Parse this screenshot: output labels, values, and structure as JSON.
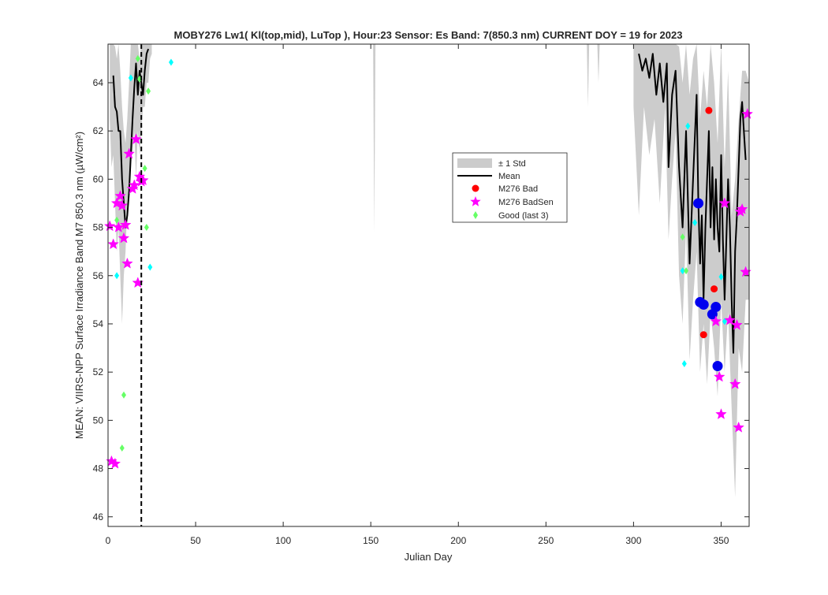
{
  "chart_data": {
    "type": "line",
    "title": "MOBY276   Lw1( Kl(top,mid), LuTop ),   Hour:23 Sensor: Es Band: 7(850.3 nm)   CURRENT DOY = 19 for 2023",
    "xlabel": "Julian Day",
    "ylabel": "MEAN: VIIRS-NPP Surface Irradiance Band M7 850.3 nm (µW/cm²)",
    "xlim": [
      0,
      366
    ],
    "ylim": [
      45.6,
      65.6
    ],
    "x_ticks": [
      0,
      50,
      100,
      150,
      200,
      250,
      300,
      350
    ],
    "y_ticks": [
      46,
      48,
      50,
      52,
      54,
      56,
      58,
      60,
      62,
      64
    ],
    "grid": false,
    "legend_position": "center-right",
    "current_doy": 19,
    "legend": [
      "± 1 Std",
      "Mean",
      "M276 Bad",
      "M276 BadSen",
      "Good (last 3)"
    ],
    "series": [
      {
        "name": "± 1 Std",
        "kind": "band",
        "color": "#cccccc",
        "points": [
          [
            1,
            62.5,
            66.5
          ],
          [
            2,
            60.5,
            66
          ],
          [
            3,
            61,
            66.5
          ],
          [
            4,
            59,
            65.5
          ],
          [
            5,
            57,
            65
          ],
          [
            6,
            58,
            66
          ],
          [
            7,
            56,
            64.5
          ],
          [
            8,
            54,
            63
          ],
          [
            9,
            56,
            62
          ],
          [
            10,
            57,
            61.5
          ],
          [
            11,
            59,
            62.5
          ],
          [
            12,
            60,
            64
          ],
          [
            13,
            61,
            66
          ],
          [
            14,
            61,
            66.5
          ],
          [
            15,
            62,
            66.5
          ],
          [
            16,
            60,
            66
          ],
          [
            17,
            62,
            66.5
          ],
          [
            18,
            61,
            65
          ],
          [
            19,
            62,
            66
          ],
          [
            20,
            63,
            66.5
          ],
          [
            21,
            63,
            66.5
          ],
          [
            22,
            64,
            66.5
          ],
          [
            23,
            64,
            66.5
          ],
          [
            24,
            65,
            66.5
          ],
          [
            25,
            65.2,
            66.5
          ]
        ],
        "spikes": [
          [
            152,
            57.8
          ],
          [
            274,
            63.0
          ],
          [
            280,
            64.0
          ]
        ]
      },
      {
        "name": "",
        "kind": "band",
        "color": "#cccccc",
        "points": [
          [
            300,
            63.0,
            66.5
          ],
          [
            303,
            58.5,
            66.5
          ],
          [
            306,
            63.0,
            66.5
          ],
          [
            309,
            61.0,
            66.5
          ],
          [
            312,
            62.5,
            66.5
          ],
          [
            315,
            59.0,
            66.5
          ],
          [
            318,
            63.0,
            66.5
          ],
          [
            320,
            57.5,
            66.5
          ],
          [
            322,
            60.0,
            66.5
          ],
          [
            324,
            62.0,
            66.5
          ],
          [
            326,
            56.0,
            65.5
          ],
          [
            328,
            54.0,
            64.0
          ],
          [
            330,
            58.0,
            66.5
          ],
          [
            332,
            52.5,
            63.5
          ],
          [
            334,
            55.0,
            65.0
          ],
          [
            336,
            57.0,
            66.0
          ],
          [
            338,
            52.0,
            62.5
          ],
          [
            340,
            54.0,
            64.5
          ],
          [
            342,
            51.5,
            63.0
          ],
          [
            344,
            54.5,
            66.0
          ],
          [
            346,
            53.0,
            64.0
          ],
          [
            348,
            51.0,
            61.5
          ],
          [
            350,
            55.0,
            66.0
          ],
          [
            352,
            52.0,
            60.5
          ],
          [
            354,
            54.5,
            64.5
          ],
          [
            356,
            50.5,
            58.5
          ],
          [
            358,
            46.8,
            60.0
          ],
          [
            360,
            53.0,
            62.5
          ],
          [
            362,
            52.0,
            64.5
          ],
          [
            364,
            55.0,
            64.5
          ],
          [
            366,
            55.0,
            64.0
          ]
        ]
      },
      {
        "name": "Mean",
        "kind": "line",
        "color": "#000000",
        "segments": [
          [
            [
              3,
              64.3
            ],
            [
              4,
              63
            ],
            [
              5,
              62.8
            ],
            [
              6,
              62
            ],
            [
              7,
              62
            ],
            [
              8,
              60
            ],
            [
              9,
              59
            ],
            [
              10,
              58
            ],
            [
              11,
              58.5
            ],
            [
              12,
              59.5
            ],
            [
              13,
              61
            ],
            [
              14,
              62.5
            ],
            [
              15,
              63.8
            ],
            [
              16,
              64.8
            ],
            [
              17,
              63.5
            ],
            [
              18,
              64.5
            ],
            [
              19,
              64
            ],
            [
              20,
              63.5
            ],
            [
              21,
              64.5
            ],
            [
              22,
              65.2
            ],
            [
              23,
              65.4
            ]
          ],
          [
            [
              303,
              65.2
            ],
            [
              305,
              64.5
            ],
            [
              307,
              65
            ],
            [
              309,
              64.2
            ],
            [
              311,
              65.2
            ],
            [
              313,
              63.5
            ],
            [
              315,
              64.8
            ],
            [
              317,
              63.2
            ],
            [
              319,
              64.8
            ],
            [
              320,
              60.5
            ],
            [
              322,
              63.5
            ],
            [
              324,
              64.5
            ],
            [
              326,
              60.5
            ],
            [
              328,
              58
            ],
            [
              330,
              62
            ],
            [
              332,
              56.5
            ],
            [
              334,
              60
            ],
            [
              336,
              63.5
            ],
            [
              337,
              59
            ],
            [
              338,
              56.5
            ],
            [
              339,
              58.5
            ],
            [
              340,
              55
            ],
            [
              341,
              58
            ],
            [
              342,
              60
            ],
            [
              343,
              62
            ],
            [
              344,
              58
            ],
            [
              345,
              60.5
            ],
            [
              346,
              57.5
            ],
            [
              347,
              60
            ],
            [
              348,
              58
            ],
            [
              349,
              57
            ],
            [
              350,
              61
            ],
            [
              351,
              57.5
            ],
            [
              352,
              55
            ],
            [
              353,
              57.5
            ],
            [
              354,
              60
            ],
            [
              355,
              58
            ],
            [
              356,
              55
            ],
            [
              357,
              52.8
            ],
            [
              358,
              57
            ],
            [
              359,
              58.5
            ],
            [
              360,
              60.5
            ],
            [
              361,
              62.5
            ],
            [
              362,
              63.2
            ],
            [
              363,
              62
            ],
            [
              364,
              60.8
            ]
          ]
        ]
      },
      {
        "name": "M276 Bad",
        "kind": "scatter",
        "color": "#ff0000",
        "points": [
          [
            343,
            62.85
          ],
          [
            346,
            55.45
          ],
          [
            340,
            53.55
          ]
        ]
      },
      {
        "name": "",
        "kind": "scatter",
        "color": "#0000ee",
        "points": [
          [
            337,
            59.0
          ],
          [
            338,
            54.9
          ],
          [
            340,
            54.8
          ],
          [
            345,
            54.4
          ],
          [
            347,
            54.7
          ],
          [
            348,
            52.25
          ]
        ]
      },
      {
        "name": "M276 BadSen",
        "kind": "scatter",
        "color": "#ff00ff",
        "points": [
          [
            1,
            58.05
          ],
          [
            2,
            48.3
          ],
          [
            3,
            57.3
          ],
          [
            4,
            48.2
          ],
          [
            5,
            59.0
          ],
          [
            6,
            58.0
          ],
          [
            7,
            59.3
          ],
          [
            8,
            58.9
          ],
          [
            9,
            57.55
          ],
          [
            10,
            58.1
          ],
          [
            11,
            56.5
          ],
          [
            12,
            61.05
          ],
          [
            14,
            59.6
          ],
          [
            15,
            59.75
          ],
          [
            16,
            61.65
          ],
          [
            17,
            55.7
          ],
          [
            18,
            60.1
          ],
          [
            19,
            59.9
          ],
          [
            20,
            59.95
          ],
          [
            347,
            54.1
          ],
          [
            349,
            51.8
          ],
          [
            350,
            50.25
          ],
          [
            352,
            59.0
          ],
          [
            355,
            54.15
          ],
          [
            358,
            51.5
          ],
          [
            359,
            53.95
          ],
          [
            360,
            49.7
          ],
          [
            361,
            58.65
          ],
          [
            362,
            58.75
          ],
          [
            364,
            56.15
          ],
          [
            365,
            62.7
          ]
        ]
      },
      {
        "name": "Good (last 3)",
        "kind": "scatter",
        "color": "#66ff66",
        "points": [
          [
            5,
            58.3
          ],
          [
            8,
            48.85
          ],
          [
            9,
            51.05
          ],
          [
            17,
            65.0
          ],
          [
            18,
            64.15
          ],
          [
            21,
            60.45
          ],
          [
            22,
            58.0
          ],
          [
            23,
            63.65
          ],
          [
            328,
            57.6
          ],
          [
            330,
            56.2
          ]
        ]
      },
      {
        "name": "",
        "kind": "scatter",
        "color": "#00ffff",
        "points": [
          [
            5,
            56.0
          ],
          [
            13,
            64.2
          ],
          [
            36,
            64.85
          ],
          [
            24,
            56.35
          ],
          [
            328,
            56.2
          ],
          [
            329,
            52.35
          ],
          [
            331,
            62.2
          ],
          [
            335,
            58.2
          ],
          [
            350,
            55.95
          ],
          [
            352,
            54.1
          ]
        ]
      }
    ]
  },
  "legend_items": [
    {
      "label": "± 1 Std"
    },
    {
      "label": "Mean"
    },
    {
      "label": "M276 Bad"
    },
    {
      "label": "M276 BadSen"
    },
    {
      "label": "Good (last 3)"
    }
  ]
}
